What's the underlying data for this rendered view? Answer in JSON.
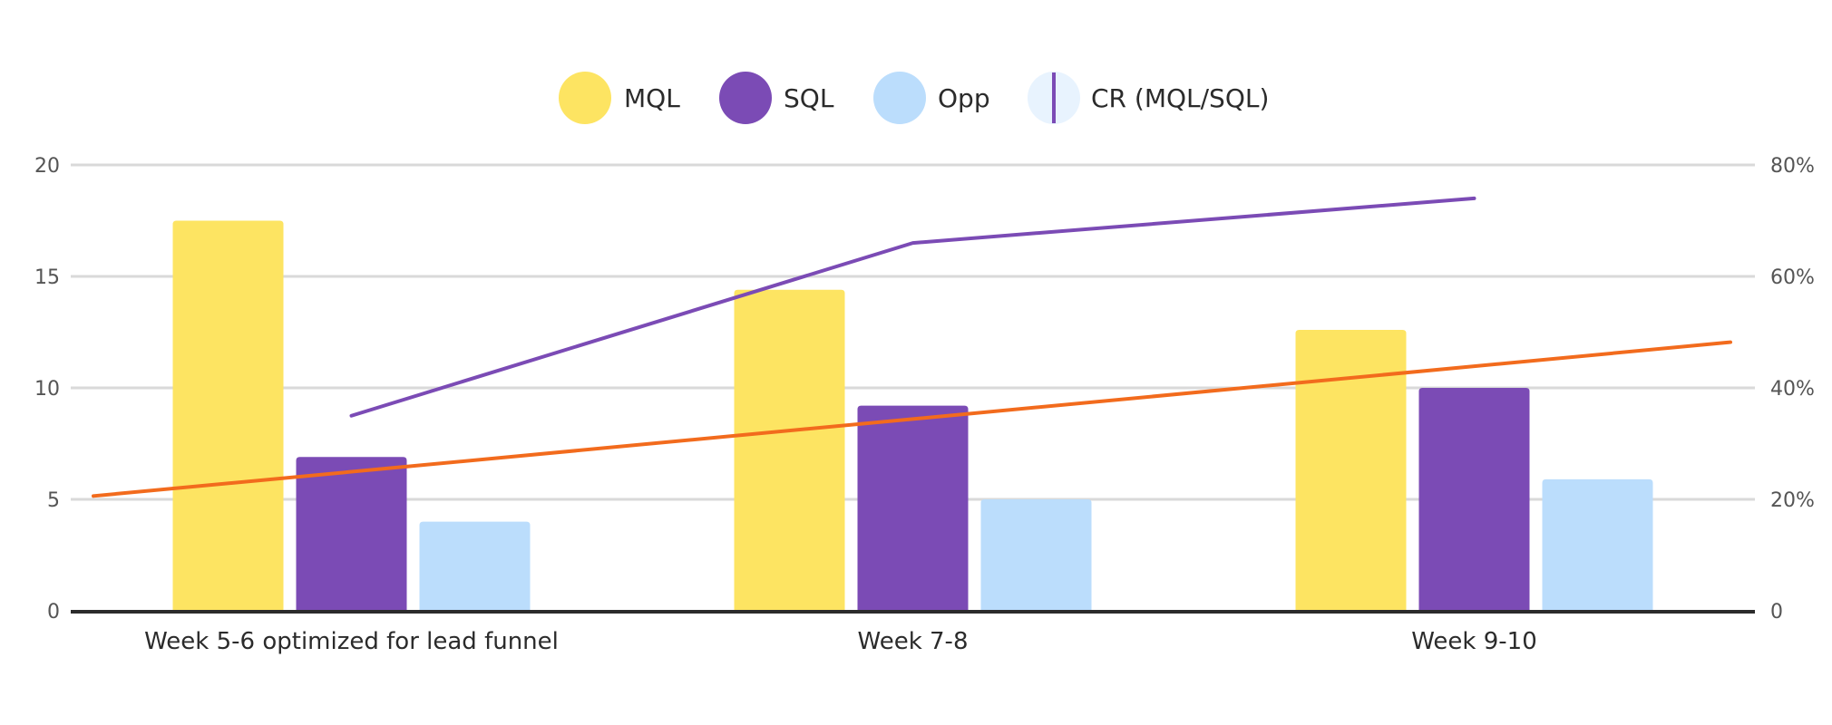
{
  "colors": {
    "mql": "#FDE462",
    "sql": "#7B4BB5",
    "opp": "#BBDDFC",
    "cr_legend_bg": "#E8F3FE",
    "cr_line": "#7B4BB5",
    "trend_line": "#F26B1D",
    "grid": "#D9D9D9",
    "axis": "#2B2B2B"
  },
  "chart_data": {
    "type": "bar",
    "categories": [
      "Week 5-6 optimized for lead funnel",
      "Week 7-8",
      "Week 9-10"
    ],
    "series": [
      {
        "name": "MQL",
        "key": "mql",
        "values": [
          17.5,
          14.4,
          12.6
        ]
      },
      {
        "name": "SQL",
        "key": "sql",
        "values": [
          6.9,
          9.2,
          10.0
        ]
      },
      {
        "name": "Opp",
        "key": "opp",
        "values": [
          4.0,
          5.0,
          5.9
        ]
      }
    ],
    "line_series": [
      {
        "name": "CR (MQL/SQL)",
        "axis": "right",
        "values": [
          35,
          66,
          74
        ]
      }
    ],
    "trend_line": {
      "axis": "right",
      "start": 20.6,
      "end": 48.2
    },
    "legend": [
      "MQL",
      "SQL",
      "Opp",
      "CR (MQL/SQL)"
    ],
    "y_left": {
      "ticks": [
        "0",
        "5",
        "10",
        "15",
        "20"
      ],
      "lim": [
        0,
        20
      ]
    },
    "y_right": {
      "ticks": [
        "0",
        "20%",
        "40%",
        "60%",
        "80%"
      ],
      "lim": [
        0,
        80
      ]
    },
    "grid": true,
    "legend_position": "top-center"
  }
}
